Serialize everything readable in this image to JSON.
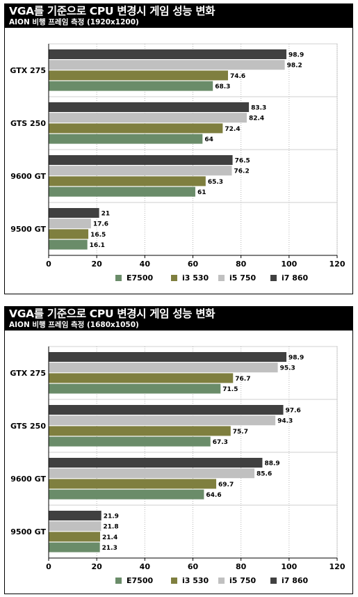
{
  "charts": [
    {
      "title": "VGA를 기준으로 CPU 변경시 게임 성능 변화",
      "subtitle": "AION 비행 프레임 측정 (1920x1200)"
    },
    {
      "title": "VGA를 기준으로 CPU 변경시 게임 성능 변화",
      "subtitle": "AION 비행 프레임 측정 (1680x1050)"
    }
  ],
  "colors": {
    "E7500": "#6a8c69",
    "i3 530": "#7f7f3f",
    "i5 750": "#c0c0c0",
    "i7 860": "#404040"
  },
  "chart_data": [
    {
      "type": "bar",
      "orientation": "horizontal",
      "title": "VGA를 기준으로 CPU 변경시 게임 성능 변화",
      "subtitle": "AION 비행 프레임 측정 (1920x1200)",
      "categories": [
        "GTX 275",
        "GTS 250",
        "9600 GT",
        "9500 GT"
      ],
      "series": [
        {
          "name": "E7500",
          "values": [
            68.3,
            64,
            61,
            16.1
          ]
        },
        {
          "name": "i3 530",
          "values": [
            74.6,
            72.4,
            65.3,
            16.5
          ]
        },
        {
          "name": "i5 750",
          "values": [
            98.2,
            82.4,
            76.2,
            17.6
          ]
        },
        {
          "name": "i7 860",
          "values": [
            98.9,
            83.3,
            76.5,
            21
          ]
        }
      ],
      "xlim": [
        0,
        120
      ],
      "xticks": [
        0,
        20,
        40,
        60,
        80,
        100,
        120
      ],
      "grid": true,
      "legend": "bottom"
    },
    {
      "type": "bar",
      "orientation": "horizontal",
      "title": "VGA를 기준으로 CPU 변경시 게임 성능 변화",
      "subtitle": "AION 비행 프레임 측정 (1680x1050)",
      "categories": [
        "GTX 275",
        "GTS 250",
        "9600 GT",
        "9500 GT"
      ],
      "series": [
        {
          "name": "E7500",
          "values": [
            71.5,
            67.3,
            64.6,
            21.3
          ]
        },
        {
          "name": "i3 530",
          "values": [
            76.7,
            75.7,
            69.7,
            21.4
          ]
        },
        {
          "name": "i5 750",
          "values": [
            95.3,
            94.3,
            85.6,
            21.8
          ]
        },
        {
          "name": "i7 860",
          "values": [
            98.9,
            97.6,
            88.9,
            21.9
          ]
        }
      ],
      "xlim": [
        0,
        120
      ],
      "xticks": [
        0,
        20,
        40,
        60,
        80,
        100,
        120
      ],
      "grid": true,
      "legend": "bottom"
    }
  ]
}
